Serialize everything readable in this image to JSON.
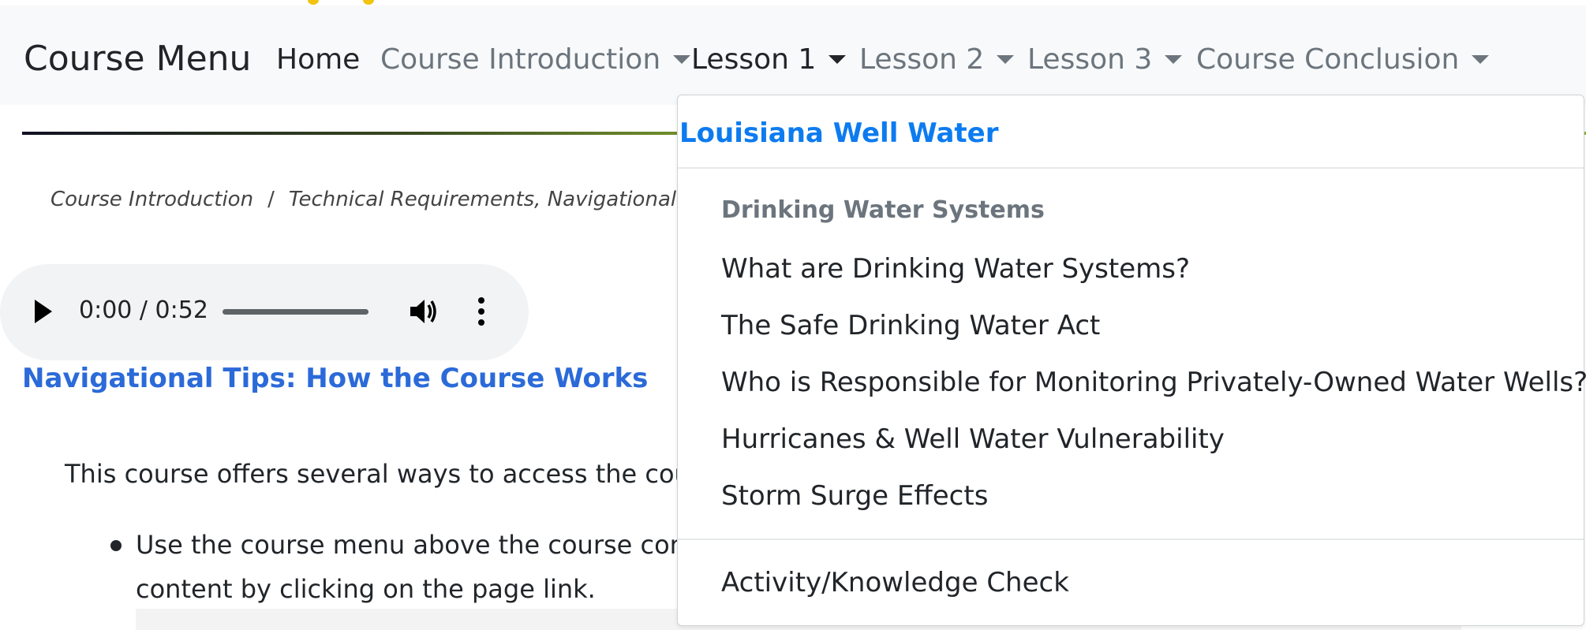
{
  "navbar": {
    "brand": "Course Menu",
    "items": [
      {
        "label": "Home",
        "has_caret": false
      },
      {
        "label": "Course Introduction",
        "has_caret": true
      },
      {
        "label": "Lesson 1",
        "has_caret": true,
        "open": true
      },
      {
        "label": "Lesson 2",
        "has_caret": true
      },
      {
        "label": "Lesson 3",
        "has_caret": true
      },
      {
        "label": "Course Conclusion",
        "has_caret": true
      }
    ]
  },
  "breadcrumb": {
    "items": [
      "Course Introduction",
      "Technical Requirements, Navigational Tips, and A"
    ],
    "separator": "/"
  },
  "audio": {
    "time": "0:00 / 0:52"
  },
  "main": {
    "heading": "Navigational Tips: How the Course Works",
    "paragraph": "This course offers several ways to access the cour",
    "bullet_line1": "Use the course menu above the course con",
    "bullet_line2": "content by clicking on the page link."
  },
  "dropdown": {
    "title": "Louisiana Well Water",
    "section_header": "Drinking Water Systems",
    "items": [
      "What are Drinking Water Systems?",
      "The Safe Drinking Water Act",
      "Who is Responsible for Monitoring Privately-Owned Water Wells?",
      "Hurricanes & Well Water Vulnerability",
      "Storm Surge Effects"
    ],
    "footer_item": "Activity/Knowledge Check"
  },
  "colors": {
    "link_blue": "#0d7bf0",
    "heading_blue": "#2b6ad8",
    "navbar_bg": "#f8f9fa",
    "muted": "#6c757d"
  }
}
